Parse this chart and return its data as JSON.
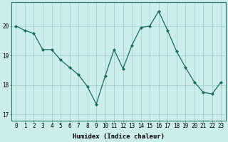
{
  "x": [
    0,
    1,
    2,
    3,
    4,
    5,
    6,
    7,
    8,
    9,
    10,
    11,
    12,
    13,
    14,
    15,
    16,
    17,
    18,
    19,
    20,
    21,
    22,
    23
  ],
  "y": [
    20.0,
    19.85,
    19.75,
    19.2,
    19.2,
    18.85,
    18.6,
    18.35,
    17.95,
    17.35,
    18.3,
    19.2,
    18.55,
    19.35,
    19.95,
    20.0,
    20.5,
    19.85,
    19.15,
    18.6,
    18.1,
    17.75,
    17.7,
    18.1
  ],
  "line_color": "#1a6b5a",
  "marker": "D",
  "marker_size": 2.0,
  "bg_color": "#cceee8",
  "grid_color": "#99cccc",
  "xlabel": "Humidex (Indice chaleur)",
  "xlabel_fontsize": 6.5,
  "tick_fontsize": 5.5,
  "ylim": [
    16.8,
    20.8
  ],
  "yticks": [
    17,
    18,
    19,
    20
  ],
  "xticks": [
    0,
    1,
    2,
    3,
    4,
    5,
    6,
    7,
    8,
    9,
    10,
    11,
    12,
    13,
    14,
    15,
    16,
    17,
    18,
    19,
    20,
    21,
    22,
    23
  ]
}
